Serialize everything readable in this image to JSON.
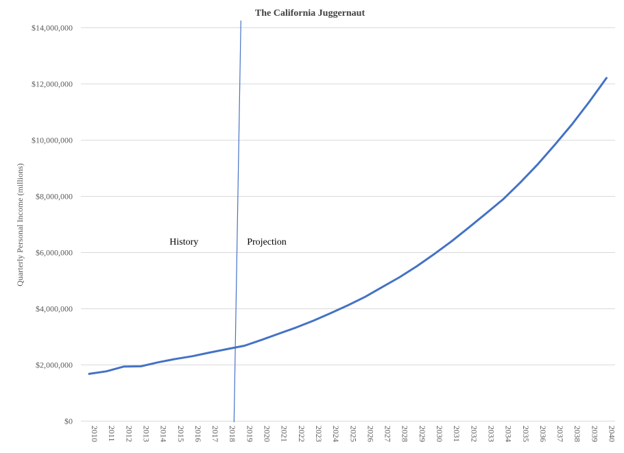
{
  "chart_data": {
    "type": "line",
    "title": "The California  Juggernaut",
    "ylabel": "Quarterly Personal Income (millions)",
    "xlabel": "",
    "ylim": [
      0,
      14000000
    ],
    "yticks": [
      0,
      2000000,
      4000000,
      6000000,
      8000000,
      10000000,
      12000000,
      14000000
    ],
    "ytick_labels": [
      "$0",
      "$2,000,000",
      "$4,000,000",
      "$6,000,000",
      "$8,000,000",
      "$10,000,000",
      "$12,000,000",
      "$14,000,000"
    ],
    "grid": true,
    "legend": "none",
    "categories": [
      "2010",
      "2011",
      "2012",
      "2013",
      "2014",
      "2015",
      "2016",
      "2017",
      "2018",
      "2019",
      "2020",
      "2021",
      "2022",
      "2023",
      "2024",
      "2025",
      "2026",
      "2027",
      "2028",
      "2029",
      "2030",
      "2031",
      "2032",
      "2033",
      "2034",
      "2035",
      "2036",
      "2037",
      "2038",
      "2039",
      "2040"
    ],
    "series": [
      {
        "color": "#4472c4",
        "values": [
          1670000,
          1760000,
          1930000,
          1940000,
          2080000,
          2200000,
          2300000,
          2430000,
          2550000,
          2670000,
          2880000,
          3100000,
          3320000,
          3560000,
          3830000,
          4110000,
          4410000,
          4760000,
          5110000,
          5500000,
          5930000,
          6380000,
          6870000,
          7370000,
          7880000,
          8480000,
          9120000,
          9820000,
          10550000,
          11350000,
          12200000
        ]
      }
    ],
    "annotations": [
      {
        "text": "History",
        "x": "2015.5",
        "y": 7000000
      },
      {
        "text": "Projection",
        "x": "2020.3",
        "y": 7000000
      }
    ],
    "divider": {
      "x_year": 2018.6,
      "color": "#4472c4"
    }
  }
}
